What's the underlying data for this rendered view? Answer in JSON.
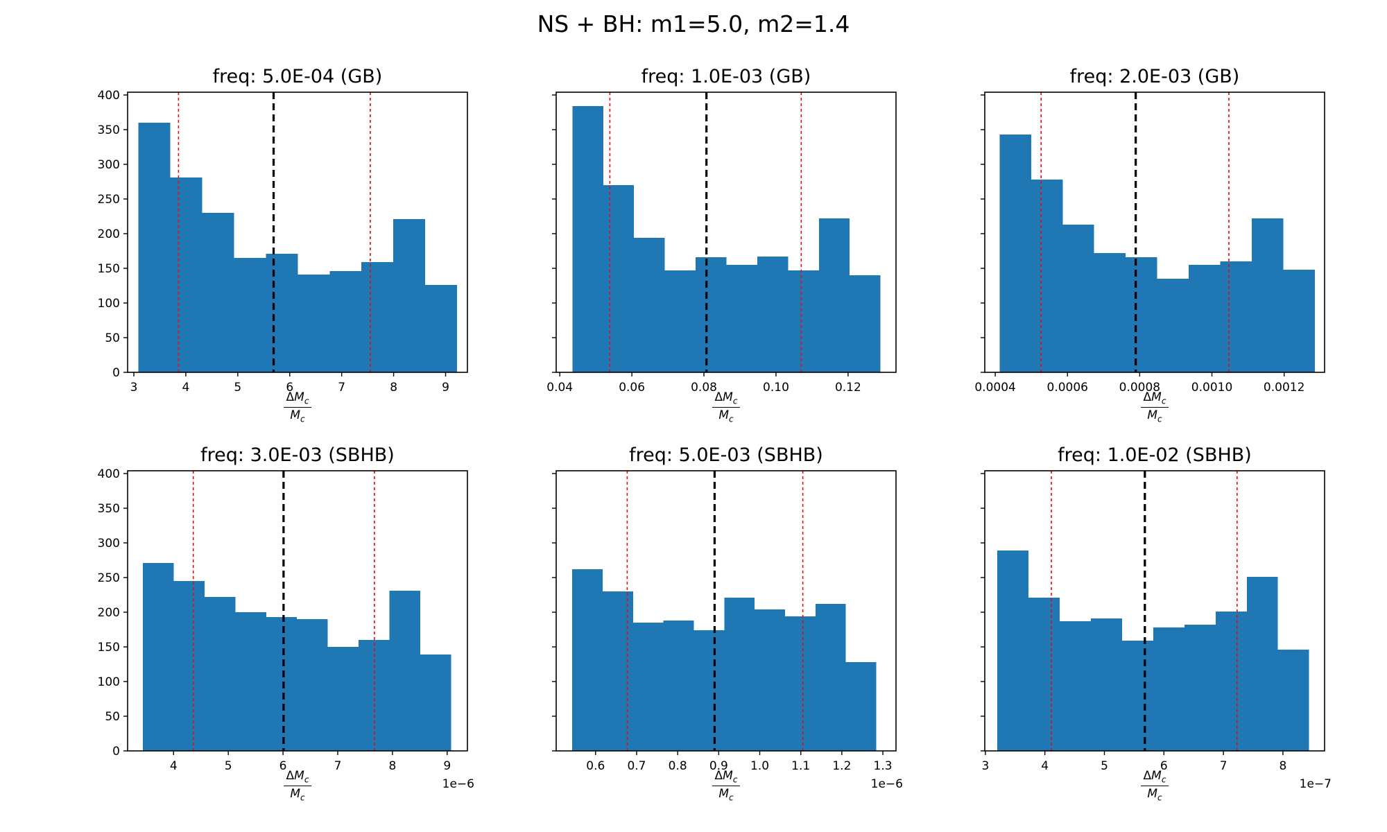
{
  "figure": {
    "suptitle": "NS + BH: m1=5.0, m2=1.4",
    "background": "#ffffff",
    "colors": {
      "bar": "#1f77b4",
      "median_line": "#000000",
      "percentile_line": "#ff0000",
      "axis": "#000000",
      "text": "#000000"
    },
    "axis_label": {
      "delta": "Δ",
      "mass": "M",
      "sub": "c"
    }
  },
  "chart_data": [
    {
      "type": "bar",
      "title": "freq: 5.0E-04 (GB)",
      "xlabel": "ΔM_c / M_c",
      "ylabel": "",
      "grid": false,
      "xlim": [
        2.88,
        9.42
      ],
      "ylim": [
        0,
        404
      ],
      "xticks": [
        3,
        4,
        5,
        6,
        7,
        8,
        9
      ],
      "xtick_labels": [
        "3",
        "4",
        "5",
        "6",
        "7",
        "8",
        "9"
      ],
      "yticks": [
        0,
        50,
        100,
        150,
        200,
        250,
        300,
        350,
        400
      ],
      "show_ytick_labels": true,
      "bin_start": 3.09,
      "bin_width": 0.613,
      "values": [
        360,
        281,
        230,
        165,
        171,
        141,
        146,
        159,
        221,
        126
      ],
      "vlines": {
        "median": 5.69,
        "percentiles": [
          3.86,
          7.55
        ]
      },
      "offset_label": ""
    },
    {
      "type": "bar",
      "title": "freq: 1.0E-03 (GB)",
      "xlabel": "ΔM_c / M_c",
      "ylabel": "",
      "grid": false,
      "xlim": [
        0.039,
        0.1333
      ],
      "ylim": [
        0,
        404
      ],
      "xticks": [
        0.04,
        0.06,
        0.08,
        0.1,
        0.12
      ],
      "xtick_labels": [
        "0.04",
        "0.06",
        "0.08",
        "0.10",
        "0.12"
      ],
      "yticks": [
        0,
        50,
        100,
        150,
        200,
        250,
        300,
        350,
        400
      ],
      "show_ytick_labels": false,
      "bin_start": 0.0435,
      "bin_width": 0.00855,
      "values": [
        384,
        270,
        194,
        147,
        166,
        155,
        167,
        147,
        222,
        140
      ],
      "vlines": {
        "median": 0.0807,
        "percentiles": [
          0.0539,
          0.107
        ]
      },
      "offset_label": ""
    },
    {
      "type": "bar",
      "title": "freq: 2.0E-03 (GB)",
      "xlabel": "ΔM_c / M_c",
      "ylabel": "",
      "grid": false,
      "xlim": [
        0.000371,
        0.001312
      ],
      "ylim": [
        0,
        404
      ],
      "xticks": [
        0.0004,
        0.0006,
        0.0008,
        0.001,
        0.0012
      ],
      "xtick_labels": [
        "0.0004",
        "0.0006",
        "0.0008",
        "0.0010",
        "0.0012"
      ],
      "yticks": [
        0,
        50,
        100,
        150,
        200,
        250,
        300,
        350,
        400
      ],
      "show_ytick_labels": false,
      "bin_start": 0.000412,
      "bin_width": 8.73e-05,
      "values": [
        343,
        278,
        213,
        172,
        166,
        135,
        155,
        160,
        222,
        148
      ],
      "vlines": {
        "median": 0.000789,
        "percentiles": [
          0.000527,
          0.001047
        ]
      },
      "offset_label": ""
    },
    {
      "type": "bar",
      "title": "freq: 3.0E-03 (SBHB)",
      "xlabel": "ΔM_c / M_c",
      "ylabel": "",
      "grid": false,
      "xlim": [
        3.16,
        9.37
      ],
      "ylim": [
        0,
        404
      ],
      "xticks": [
        4,
        5,
        6,
        7,
        8,
        9
      ],
      "xtick_labels": [
        "4",
        "5",
        "6",
        "7",
        "8",
        "9"
      ],
      "yticks": [
        0,
        50,
        100,
        150,
        200,
        250,
        300,
        350,
        400
      ],
      "show_ytick_labels": true,
      "bin_start": 3.44,
      "bin_width": 0.563,
      "values": [
        271,
        245,
        222,
        200,
        193,
        190,
        150,
        160,
        231,
        139
      ],
      "vlines": {
        "median": 6.01,
        "percentiles": [
          4.36,
          7.67
        ]
      },
      "offset_label": "1e−6"
    },
    {
      "type": "bar",
      "title": "freq: 5.0E-03 (SBHB)",
      "xlabel": "ΔM_c / M_c",
      "ylabel": "",
      "grid": false,
      "xlim": [
        0.504,
        1.332
      ],
      "ylim": [
        0,
        404
      ],
      "xticks": [
        0.6,
        0.7,
        0.8,
        0.9,
        1.0,
        1.1,
        1.2,
        1.3
      ],
      "xtick_labels": [
        "0.6",
        "0.7",
        "0.8",
        "0.9",
        "1.0",
        "1.1",
        "1.2",
        "1.3"
      ],
      "yticks": [
        0,
        50,
        100,
        150,
        200,
        250,
        300,
        350,
        400
      ],
      "show_ytick_labels": false,
      "bin_start": 0.543,
      "bin_width": 0.0741,
      "values": [
        262,
        230,
        185,
        188,
        174,
        221,
        204,
        194,
        212,
        128
      ],
      "vlines": {
        "median": 0.89,
        "percentiles": [
          0.677,
          1.105
        ]
      },
      "offset_label": "1e−6"
    },
    {
      "type": "bar",
      "title": "freq: 1.0E-02 (SBHB)",
      "xlabel": "ΔM_c / M_c",
      "ylabel": "",
      "grid": false,
      "xlim": [
        2.99,
        8.7
      ],
      "ylim": [
        0,
        404
      ],
      "xticks": [
        3,
        4,
        5,
        6,
        7,
        8
      ],
      "xtick_labels": [
        "3",
        "4",
        "5",
        "6",
        "7",
        "8"
      ],
      "yticks": [
        0,
        50,
        100,
        150,
        200,
        250,
        300,
        350,
        400
      ],
      "show_ytick_labels": false,
      "bin_start": 3.2,
      "bin_width": 0.524,
      "values": [
        289,
        221,
        187,
        191,
        159,
        178,
        182,
        201,
        251,
        146
      ],
      "vlines": {
        "median": 5.68,
        "percentiles": [
          4.11,
          7.23
        ]
      },
      "offset_label": "1e−7"
    }
  ]
}
